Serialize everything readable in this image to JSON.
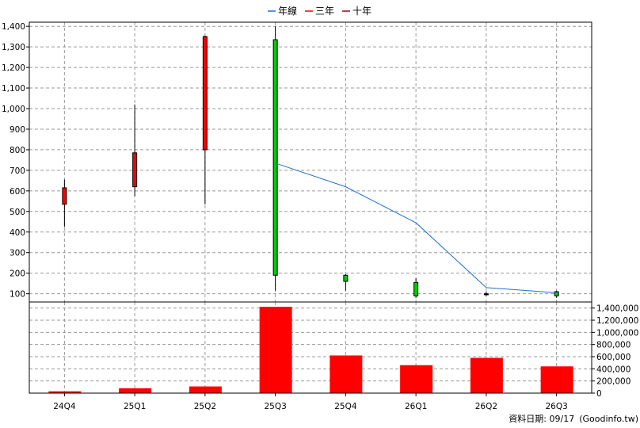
{
  "chart_data": {
    "type": "candlestick+line+bar",
    "categories": [
      "24Q4",
      "25Q1",
      "25Q2",
      "25Q3",
      "25Q4",
      "26Q1",
      "26Q2",
      "26Q3"
    ],
    "legend": [
      {
        "name": "年線",
        "color": "#1f6fd0"
      },
      {
        "name": "三年",
        "color": "#ff0000"
      },
      {
        "name": "十年",
        "color": "#aa0000"
      }
    ],
    "price_axis": {
      "ylim": [
        60,
        1420
      ],
      "ticks": [
        100,
        200,
        300,
        400,
        500,
        600,
        700,
        800,
        900,
        1000,
        1100,
        1200,
        1300,
        1400
      ],
      "tick_labels": [
        "100",
        "200",
        "300",
        "400",
        "500",
        "600",
        "700",
        "800",
        "900",
        "1,000",
        "1,100",
        "1,200",
        "1,300",
        "1,400"
      ]
    },
    "candles": [
      {
        "open": 535,
        "close": 615,
        "high": 655,
        "low": 425,
        "color": "#ff0000"
      },
      {
        "open": 620,
        "close": 785,
        "high": 1020,
        "low": 575,
        "color": "#ff0000"
      },
      {
        "open": 800,
        "close": 1350,
        "high": 1355,
        "low": 535,
        "color": "#ff0000"
      },
      {
        "open": 1335,
        "close": 190,
        "high": 1400,
        "low": 115,
        "color": "#00cc00"
      },
      {
        "open": 190,
        "close": 160,
        "high": 195,
        "low": 115,
        "color": "#00cc00"
      },
      {
        "open": 155,
        "close": 90,
        "high": 175,
        "low": 80,
        "color": "#00cc00"
      },
      {
        "open": 100,
        "close": 95,
        "high": 110,
        "low": 90,
        "color": "#000000"
      },
      {
        "open": 110,
        "close": 90,
        "high": 115,
        "low": 80,
        "color": "#00cc00"
      }
    ],
    "annual_line": {
      "name": "年線",
      "start_index": 3,
      "values": [
        735,
        620,
        445,
        130,
        105
      ]
    },
    "volume_axis": {
      "ylim": [
        0,
        1500000
      ],
      "ticks": [
        0,
        200000,
        400000,
        600000,
        800000,
        1000000,
        1200000,
        1400000
      ],
      "tick_labels": [
        "0",
        "200,000",
        "400,000",
        "600,000",
        "800,000",
        "1,000,000",
        "1,200,000",
        "1,400,000"
      ]
    },
    "volume": [
      30000,
      80000,
      110000,
      1420000,
      620000,
      460000,
      580000,
      440000
    ],
    "volume_color": "#ff0000",
    "grid": true
  },
  "footer": {
    "date_label": "資料日期: 09/17",
    "source": "(Goodinfo.tw)"
  }
}
